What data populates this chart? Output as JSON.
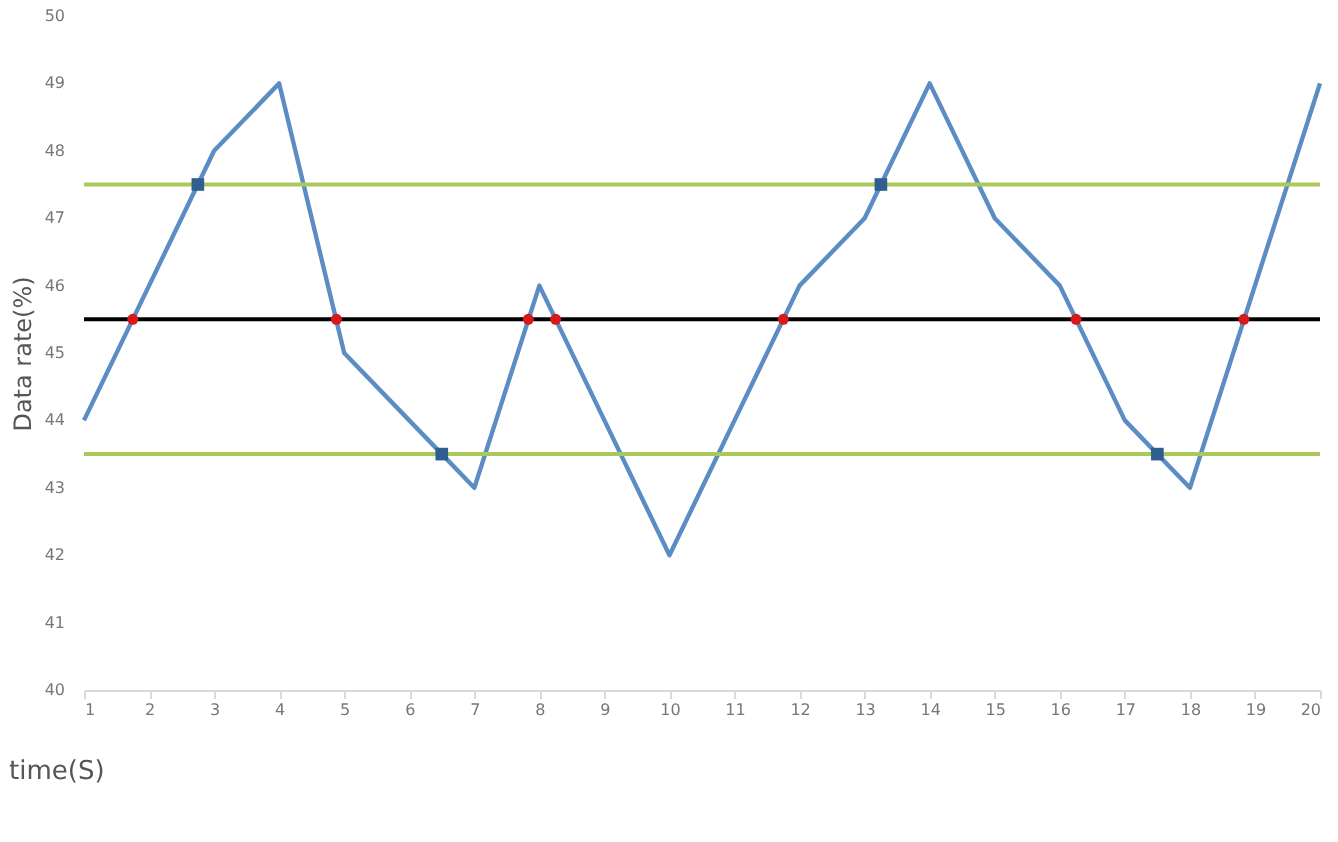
{
  "chart_data": {
    "type": "line",
    "xlabel": "time(S)",
    "ylabel": "Data rate(%)",
    "xlim": [
      1,
      20
    ],
    "xticks": [
      1,
      2,
      3,
      4,
      5,
      6,
      7,
      8,
      9,
      10,
      11,
      12,
      13,
      14,
      15,
      16,
      17,
      18,
      19,
      20
    ],
    "ylim": [
      40,
      50
    ],
    "yticks": [
      40,
      41,
      42,
      43,
      44,
      45,
      46,
      47,
      48,
      49,
      50
    ],
    "grid": false,
    "marker": "none",
    "line_style": "solid",
    "series": [
      {
        "color": "#5b8dc4",
        "x": [
          1,
          2,
          3,
          4,
          5,
          6,
          7,
          8,
          9,
          10,
          11,
          12,
          13,
          14,
          15,
          16,
          17,
          18,
          19,
          20
        ],
        "values": [
          44,
          46,
          48,
          49,
          45,
          44,
          43,
          46,
          44,
          42,
          44,
          46,
          47,
          49,
          47,
          46,
          44,
          43,
          46,
          49
        ]
      },
      {
        "type": "scatter",
        "marker": "circle",
        "color": "#d7191c",
        "x": [
          1.75,
          4.88,
          7.83,
          8.25,
          11.75,
          16.25,
          18.83
        ],
        "values": [
          45.5,
          45.5,
          45.5,
          45.5,
          45.5,
          45.5,
          45.5
        ]
      },
      {
        "type": "scatter",
        "marker": "square",
        "color": "#2f5f8f",
        "x": [
          2.75,
          13.25,
          6.5,
          17.5
        ],
        "values": [
          47.5,
          47.5,
          43.5,
          43.5
        ]
      }
    ],
    "ref_lines": [
      {
        "axis": "y",
        "value": 47.5,
        "color": "#a9c95b"
      },
      {
        "axis": "y",
        "value": 45.5,
        "color": "#000000"
      },
      {
        "axis": "y",
        "value": 43.5,
        "color": "#a9c95b"
      }
    ]
  }
}
